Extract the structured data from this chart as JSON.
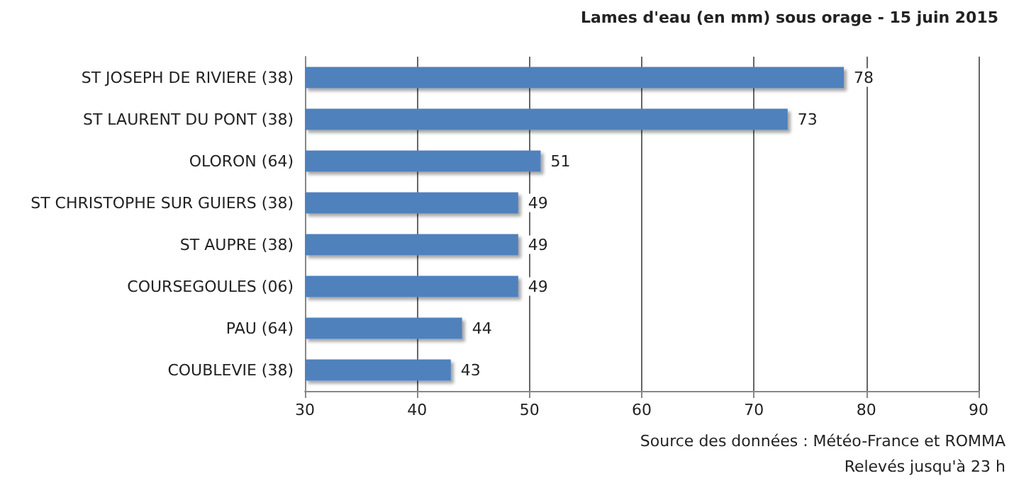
{
  "chart_data": {
    "type": "bar",
    "orientation": "horizontal",
    "title": "Lames d'eau (en mm) sous orage - 15 juin 2015",
    "categories": [
      "ST JOSEPH DE RIVIERE (38)",
      "ST LAURENT DU PONT (38)",
      "OLORON (64)",
      "ST CHRISTOPHE SUR GUIERS (38)",
      "ST AUPRE (38)",
      "COURSEGOULES (06)",
      "PAU (64)",
      "COUBLEVIE (38)"
    ],
    "values": [
      78,
      73,
      51,
      49,
      49,
      49,
      44,
      43
    ],
    "color": "#4f81bd",
    "xlim": [
      30,
      90
    ],
    "xticks": [
      30,
      40,
      50,
      60,
      70,
      80,
      90
    ],
    "grid": "x",
    "data_labels": true,
    "annotations": [
      "Source des données : Météo-France et ROMMA",
      "Relevés jusqu'à 23 h"
    ]
  }
}
